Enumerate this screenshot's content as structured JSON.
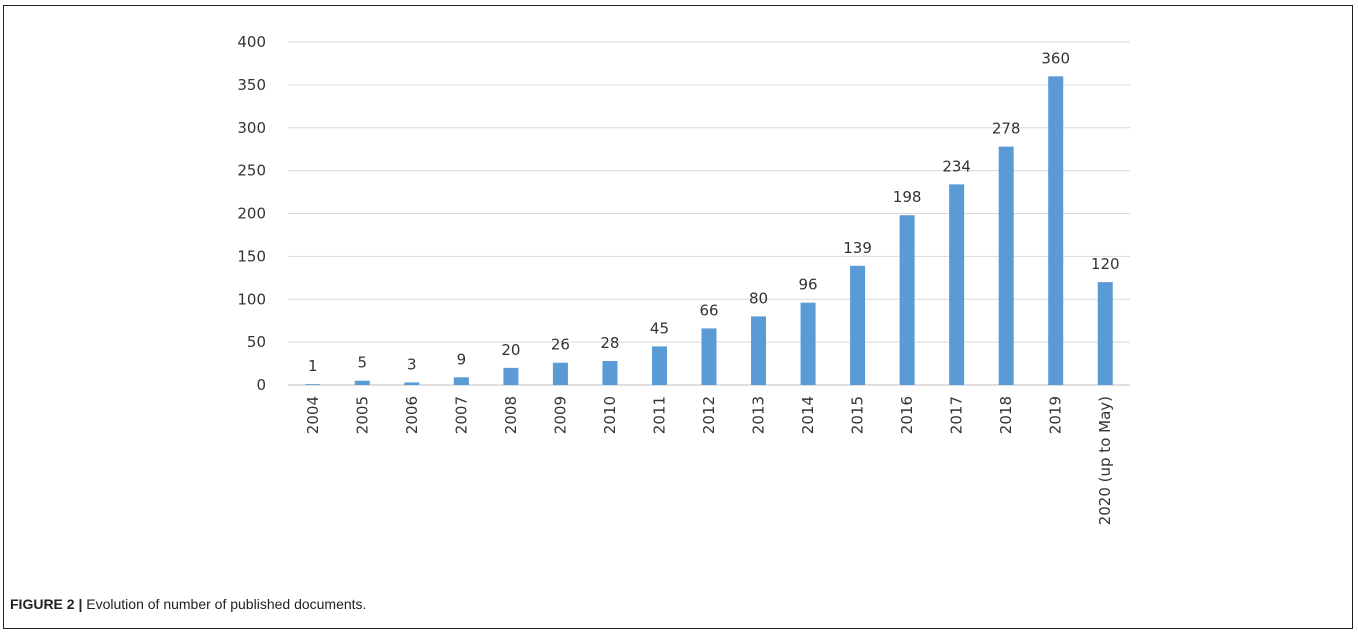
{
  "chart_data": {
    "type": "bar",
    "categories": [
      "2004",
      "2005",
      "2006",
      "2007",
      "2008",
      "2009",
      "2010",
      "2011",
      "2012",
      "2013",
      "2014",
      "2015",
      "2016",
      "2017",
      "2018",
      "2019",
      "2020 (up to May)"
    ],
    "values": [
      1,
      5,
      3,
      9,
      20,
      26,
      28,
      45,
      66,
      80,
      96,
      139,
      198,
      234,
      278,
      360,
      120
    ],
    "ylim": [
      0,
      400
    ],
    "yticks": [
      0,
      50,
      100,
      150,
      200,
      250,
      300,
      350,
      400
    ],
    "grid": true,
    "data_labels": true,
    "bar_color": "#5b9bd5",
    "title": "",
    "xlabel": "",
    "ylabel": ""
  },
  "caption": {
    "label": "FIGURE 2 |",
    "text": " Evolution of number of published documents."
  },
  "colors": {
    "bar": "#5b9bd5",
    "grid": "#d9d9d9",
    "axis": "#bfbfbf",
    "text": "#333333"
  }
}
